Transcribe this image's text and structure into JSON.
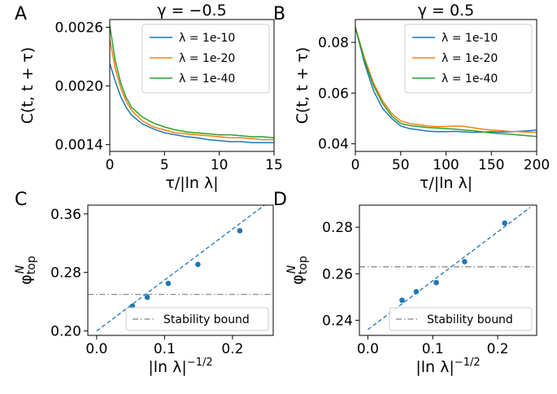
{
  "chart_data": [
    {
      "panel_label": "A",
      "type": "line",
      "title": "γ = −0.5",
      "xlabel": "τ/|ln λ|",
      "ylabel": "C(t, t + τ)",
      "xlim": [
        0,
        15
      ],
      "ylim": [
        0.00133,
        0.00268
      ],
      "xticks": [
        0,
        5,
        10,
        15
      ],
      "xtick_labels": [
        "0",
        "5",
        "10",
        "15"
      ],
      "yticks": [
        0.0014,
        0.002,
        0.0026
      ],
      "ytick_labels": [
        "0.0014",
        "0.0020",
        "0.0026"
      ],
      "grid": false,
      "legend_position": "top-right",
      "series": [
        {
          "name": "λ = 1e-10",
          "color": "#1f77b4",
          "x": [
            0,
            0.5,
            1,
            1.5,
            2,
            3,
            4,
            5,
            6,
            7,
            8,
            9,
            10,
            11,
            12,
            13,
            14,
            15
          ],
          "y": [
            0.00223,
            0.00205,
            0.00189,
            0.00178,
            0.0017,
            0.00161,
            0.00156,
            0.00152,
            0.0015,
            0.00148,
            0.00147,
            0.00145,
            0.00144,
            0.00143,
            0.00143,
            0.00142,
            0.00142,
            0.00142
          ]
        },
        {
          "name": "λ = 1e-20",
          "color": "#ff7f0e",
          "x": [
            0,
            0.5,
            1,
            1.5,
            2,
            3,
            4,
            5,
            6,
            7,
            8,
            9,
            10,
            11,
            12,
            13,
            14,
            15
          ],
          "y": [
            0.00248,
            0.00218,
            0.00198,
            0.00184,
            0.00175,
            0.00164,
            0.00158,
            0.00155,
            0.00152,
            0.00151,
            0.0015,
            0.00149,
            0.00148,
            0.00147,
            0.00147,
            0.00146,
            0.00145,
            0.00145
          ]
        },
        {
          "name": "λ = 1e-40",
          "color": "#2ca02c",
          "x": [
            0,
            0.5,
            1,
            1.5,
            2,
            3,
            4,
            5,
            6,
            7,
            8,
            9,
            10,
            11,
            12,
            13,
            14,
            15
          ],
          "y": [
            0.00262,
            0.00226,
            0.00203,
            0.00188,
            0.00178,
            0.00168,
            0.00162,
            0.00158,
            0.00155,
            0.00153,
            0.00152,
            0.00151,
            0.0015,
            0.0015,
            0.00149,
            0.00148,
            0.00148,
            0.00147
          ]
        }
      ]
    },
    {
      "panel_label": "B",
      "type": "line",
      "title": "γ = 0.5",
      "xlabel": "τ/|ln λ|",
      "ylabel": "C(t, t + τ)",
      "xlim": [
        0,
        200
      ],
      "ylim": [
        0.037,
        0.089
      ],
      "xticks": [
        0,
        50,
        100,
        150,
        200
      ],
      "xtick_labels": [
        "0",
        "50",
        "100",
        "150",
        "200"
      ],
      "yticks": [
        0.04,
        0.06,
        0.08
      ],
      "ytick_labels": [
        "0.04",
        "0.06",
        "0.08"
      ],
      "grid": false,
      "legend_position": "top-right",
      "series": [
        {
          "name": "λ = 1e-10",
          "color": "#1f77b4",
          "x": [
            0,
            10,
            20,
            30,
            40,
            50,
            60,
            70,
            80,
            90,
            100,
            110,
            120,
            130,
            140,
            150,
            160,
            170,
            180,
            190,
            200
          ],
          "y": [
            0.086,
            0.072,
            0.061,
            0.054,
            0.05,
            0.047,
            0.046,
            0.0455,
            0.045,
            0.0448,
            0.0448,
            0.0449,
            0.0447,
            0.0445,
            0.0446,
            0.0448,
            0.0446,
            0.0447,
            0.0449,
            0.0451,
            0.0454
          ]
        },
        {
          "name": "λ = 1e-20",
          "color": "#ff7f0e",
          "x": [
            0,
            10,
            20,
            30,
            40,
            50,
            60,
            70,
            80,
            90,
            100,
            110,
            120,
            130,
            140,
            150,
            160,
            170,
            180,
            190,
            200
          ],
          "y": [
            0.086,
            0.074,
            0.064,
            0.057,
            0.052,
            0.049,
            0.048,
            0.0475,
            0.047,
            0.0468,
            0.0468,
            0.047,
            0.0469,
            0.0463,
            0.0458,
            0.0454,
            0.0452,
            0.0449,
            0.0448,
            0.0446,
            0.0445
          ]
        },
        {
          "name": "λ = 1e-40",
          "color": "#2ca02c",
          "x": [
            0,
            10,
            20,
            30,
            40,
            50,
            60,
            70,
            80,
            90,
            100,
            110,
            120,
            130,
            140,
            150,
            160,
            170,
            180,
            190,
            200
          ],
          "y": [
            0.086,
            0.073,
            0.063,
            0.056,
            0.051,
            0.048,
            0.0472,
            0.0468,
            0.0464,
            0.0462,
            0.046,
            0.0458,
            0.0454,
            0.0452,
            0.0447,
            0.0443,
            0.044,
            0.0438,
            0.0435,
            0.0432,
            0.0429
          ]
        }
      ]
    },
    {
      "panel_label": "C",
      "type": "scatter",
      "title": "",
      "xlabel": "|ln λ|^(−1/2)",
      "ylabel": "φ_top^N",
      "xlim": [
        -0.013,
        0.26
      ],
      "ylim": [
        0.194,
        0.372
      ],
      "xticks": [
        0,
        0.1,
        0.2
      ],
      "xtick_labels": [
        "0.0",
        "0.1",
        "0.2"
      ],
      "yticks": [
        0.2,
        0.28,
        0.36
      ],
      "ytick_labels": [
        "0.20",
        "0.28",
        "0.36"
      ],
      "grid": false,
      "legend_position": "lower-right",
      "points": {
        "color": "#1f77b4",
        "x": [
          0.0527,
          0.0746,
          0.1054,
          0.1491,
          0.2108
        ],
        "y": [
          0.234,
          0.246,
          0.265,
          0.291,
          0.337
        ]
      },
      "fit_line": {
        "color": "#1f77b4",
        "x": [
          0,
          0.25
        ],
        "y": [
          0.2,
          0.374
        ]
      },
      "bound": {
        "name": "Stability bound",
        "color": "#808080",
        "y": 0.25
      }
    },
    {
      "panel_label": "D",
      "type": "scatter",
      "title": "",
      "xlabel": "|ln λ|^(−1/2)",
      "ylabel": "φ_top^N",
      "xlim": [
        -0.013,
        0.26
      ],
      "ylim": [
        0.2335,
        0.2895
      ],
      "xticks": [
        0,
        0.1,
        0.2
      ],
      "xtick_labels": [
        "0.0",
        "0.1",
        "0.2"
      ],
      "yticks": [
        0.24,
        0.26,
        0.28
      ],
      "ytick_labels": [
        "0.24",
        "0.26",
        "0.28"
      ],
      "grid": false,
      "legend_position": "lower-right",
      "points": {
        "color": "#1f77b4",
        "x": [
          0.0527,
          0.0746,
          0.1054,
          0.1491,
          0.2108
        ],
        "y": [
          0.2486,
          0.2523,
          0.2562,
          0.2652,
          0.2818
        ]
      },
      "fit_line": {
        "color": "#1f77b4",
        "x": [
          0,
          0.25
        ],
        "y": [
          0.236,
          0.2885
        ]
      },
      "bound": {
        "name": "Stability bound",
        "color": "#808080",
        "y": 0.263
      }
    }
  ]
}
